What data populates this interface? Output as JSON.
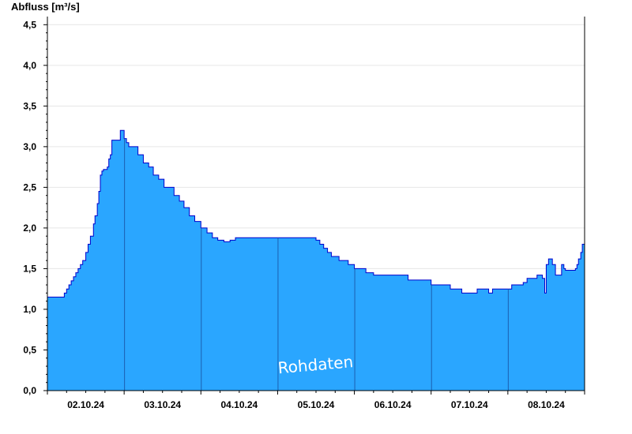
{
  "chart_data": {
    "type": "area",
    "ylabel": "Abfluss [m³/s]",
    "ylim": [
      0,
      4.6
    ],
    "yticks": [
      "0,0",
      "0,5",
      "1,0",
      "1,5",
      "2,0",
      "2,5",
      "3,0",
      "3,5",
      "4,0",
      "4,5"
    ],
    "ytick_values": [
      0,
      0.5,
      1.0,
      1.5,
      2.0,
      2.5,
      3.0,
      3.5,
      4.0,
      4.5
    ],
    "xlim": [
      0,
      7.0
    ],
    "xtick_labels": [
      "02.10.24",
      "03.10.24",
      "04.10.24",
      "05.10.24",
      "06.10.24",
      "07.10.24",
      "08.10.24"
    ],
    "day_boundaries": [
      1,
      2,
      3,
      4,
      5,
      6
    ],
    "watermark": "Rohdaten",
    "fill_color": "#2aa6ff",
    "line_color": "#0000cc",
    "grid": true,
    "series": [
      {
        "x": [
          0.0,
          0.2,
          0.22,
          0.25,
          0.28,
          0.31,
          0.34,
          0.37,
          0.4,
          0.43,
          0.46,
          0.5,
          0.53,
          0.56,
          0.6,
          0.62,
          0.65,
          0.67,
          0.69,
          0.71,
          0.73,
          0.75,
          0.77,
          0.78,
          0.8,
          0.82,
          0.84,
          0.95,
          0.97,
          1.0,
          1.03,
          1.06,
          1.18,
          1.25,
          1.32,
          1.38,
          1.45,
          1.52,
          1.65,
          1.72,
          1.78,
          1.85,
          1.92,
          2.0,
          2.08,
          2.15,
          2.22,
          2.3,
          2.38,
          2.45,
          2.6,
          2.8,
          2.95,
          3.45,
          3.5,
          3.55,
          3.6,
          3.65,
          3.7,
          3.8,
          3.92,
          4.0,
          4.15,
          4.25,
          4.35,
          4.5,
          4.7,
          5.0,
          5.25,
          5.4,
          5.5,
          5.6,
          5.75,
          5.8,
          5.9,
          6.0,
          6.05,
          6.2,
          6.25,
          6.38,
          6.45,
          6.48,
          6.5,
          6.53,
          6.58,
          6.62,
          6.7,
          6.73,
          6.75,
          6.8,
          6.85,
          6.88,
          6.9,
          6.92,
          6.95,
          6.97,
          7.0
        ],
        "y": [
          1.15,
          1.15,
          1.2,
          1.25,
          1.3,
          1.35,
          1.4,
          1.45,
          1.5,
          1.55,
          1.6,
          1.7,
          1.8,
          1.9,
          2.05,
          2.15,
          2.3,
          2.45,
          2.65,
          2.7,
          2.72,
          2.72,
          2.72,
          2.75,
          2.85,
          2.9,
          3.08,
          3.2,
          3.2,
          3.1,
          3.05,
          3.0,
          2.9,
          2.8,
          2.75,
          2.65,
          2.6,
          2.5,
          2.4,
          2.33,
          2.25,
          2.15,
          2.08,
          2.0,
          1.94,
          1.88,
          1.85,
          1.83,
          1.85,
          1.88,
          1.88,
          1.88,
          1.88,
          1.88,
          1.85,
          1.8,
          1.75,
          1.7,
          1.65,
          1.6,
          1.55,
          1.5,
          1.45,
          1.42,
          1.42,
          1.42,
          1.36,
          1.3,
          1.25,
          1.2,
          1.2,
          1.25,
          1.2,
          1.25,
          1.25,
          1.25,
          1.3,
          1.33,
          1.38,
          1.42,
          1.38,
          1.2,
          1.55,
          1.62,
          1.55,
          1.42,
          1.55,
          1.5,
          1.48,
          1.48,
          1.48,
          1.5,
          1.55,
          1.62,
          1.7,
          1.8,
          1.95
        ]
      }
    ]
  }
}
